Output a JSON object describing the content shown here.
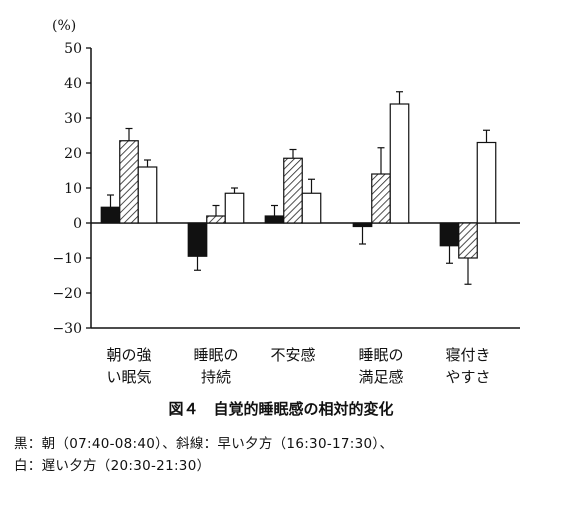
{
  "chart_data": {
    "type": "bar",
    "unit_label": "(%)",
    "categories": [
      [
        "朝の強",
        "い眠気"
      ],
      [
        "睡眠の",
        "持続"
      ],
      [
        "不安感"
      ],
      [
        "睡眠の",
        "満足感"
      ],
      [
        "寝付き",
        "やすさ"
      ]
    ],
    "series": [
      {
        "fill": "#111111",
        "values": [
          4.5,
          -9.5,
          2,
          -1,
          -6.5
        ],
        "errors": [
          3.5,
          4,
          3,
          5,
          5
        ]
      },
      {
        "fill": "hatch",
        "values": [
          23.5,
          2,
          18.5,
          14,
          -10
        ],
        "errors": [
          3.5,
          3,
          2.5,
          7.5,
          7.5
        ]
      },
      {
        "fill": "#ffffff",
        "values": [
          16,
          8.5,
          8.5,
          34,
          23
        ],
        "errors": [
          2,
          1.5,
          4,
          3.5,
          3.5
        ]
      }
    ],
    "yticks": [
      "50",
      "40",
      "30",
      "20",
      "10",
      "0",
      "−10",
      "−20",
      "−30"
    ],
    "ylim": [
      -30,
      50
    ],
    "grid": false
  },
  "caption": "図４　自覚的睡眠感の相対的変化",
  "note_line1": "黒：朝（07:40-08:40）、斜線：早い夕方（16:30-17:30）、",
  "note_line2": "白：遅い夕方（20:30-21:30）"
}
